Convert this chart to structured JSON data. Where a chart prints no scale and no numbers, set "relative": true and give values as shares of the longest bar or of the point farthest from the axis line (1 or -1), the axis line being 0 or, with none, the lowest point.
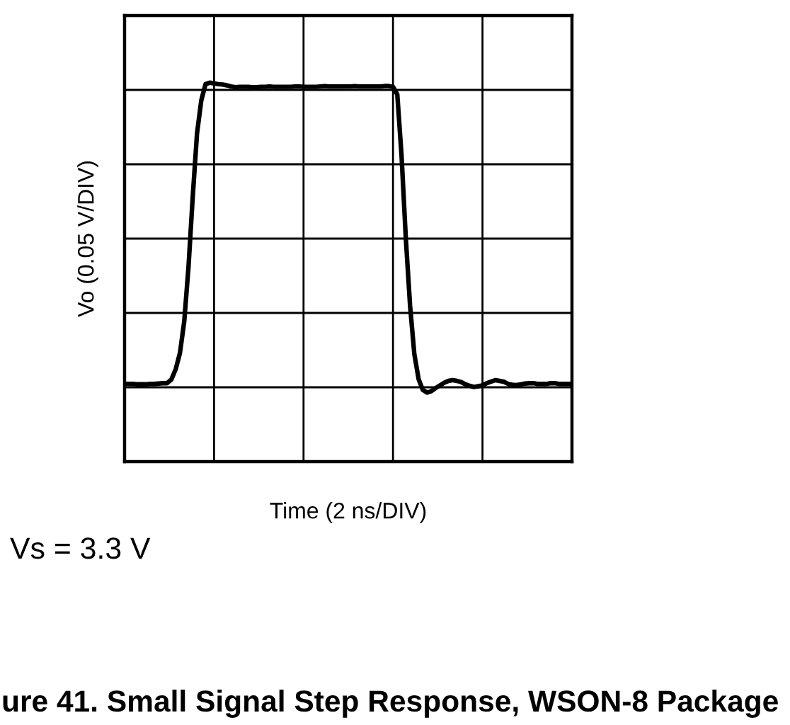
{
  "chart_data": {
    "type": "line",
    "title": "ure 41. Small Signal Step Response, WSON-8 Package",
    "xlabel": "Time (2 ns/DIV)",
    "ylabel": "Vo (0.05 V/DIV)",
    "annotations": [
      "Vs = 3.3 V"
    ],
    "relative": true,
    "grid": true,
    "tick_labels": false,
    "line_style": "solid",
    "categories": [
      null,
      null,
      null,
      null,
      null,
      null,
      null,
      null,
      null,
      null,
      null,
      null,
      null,
      null,
      null,
      null,
      null,
      null,
      null,
      null,
      null,
      null,
      null,
      null,
      null,
      null,
      null,
      null,
      null,
      null,
      null,
      null,
      null,
      null,
      null,
      null,
      null,
      null,
      null,
      null,
      null,
      null,
      null,
      null,
      null,
      null,
      null,
      null,
      null,
      null,
      null,
      null,
      null,
      null,
      null,
      null,
      null,
      null,
      null,
      null,
      null,
      null,
      null,
      null,
      null,
      null,
      null,
      null,
      null,
      null,
      null,
      null,
      null,
      null,
      null,
      null,
      null,
      null,
      null,
      null,
      null,
      null,
      null,
      null,
      null,
      null,
      null,
      null,
      null,
      null,
      null,
      null,
      null,
      null,
      null,
      null,
      null,
      null,
      null,
      null,
      null,
      null,
      null,
      null,
      null,
      null
    ],
    "series": [
      {
        "color": "#000000",
        "values": [
          0.205,
          0.205,
          0.205,
          0.204,
          0.204,
          0.204,
          0.205,
          0.205,
          0.206,
          0.207,
          0.207,
          0.217,
          0.244,
          0.287,
          0.37,
          0.514,
          0.7,
          0.866,
          0.953,
          0.996,
          1.0,
          0.998,
          0.996,
          0.995,
          0.993,
          0.99,
          0.988,
          0.989,
          0.989,
          0.989,
          0.988,
          0.988,
          0.989,
          0.989,
          0.99,
          0.989,
          0.989,
          0.989,
          0.989,
          0.989,
          0.99,
          0.99,
          0.989,
          0.989,
          0.989,
          0.989,
          0.99,
          0.991,
          0.99,
          0.99,
          0.99,
          0.99,
          0.99,
          0.99,
          0.991,
          0.99,
          0.99,
          0.99,
          0.99,
          0.99,
          0.99,
          0.991,
          0.991,
          0.989,
          0.969,
          0.808,
          0.59,
          0.412,
          0.284,
          0.218,
          0.189,
          0.182,
          0.186,
          0.194,
          0.201,
          0.208,
          0.213,
          0.215,
          0.213,
          0.21,
          0.204,
          0.2,
          0.197,
          0.199,
          0.201,
          0.207,
          0.211,
          0.215,
          0.213,
          0.211,
          0.205,
          0.203,
          0.202,
          0.204,
          0.206,
          0.207,
          0.207,
          0.205,
          0.205,
          0.205,
          0.207,
          0.207,
          0.205,
          0.205,
          0.205,
          0.205
        ]
      }
    ]
  }
}
